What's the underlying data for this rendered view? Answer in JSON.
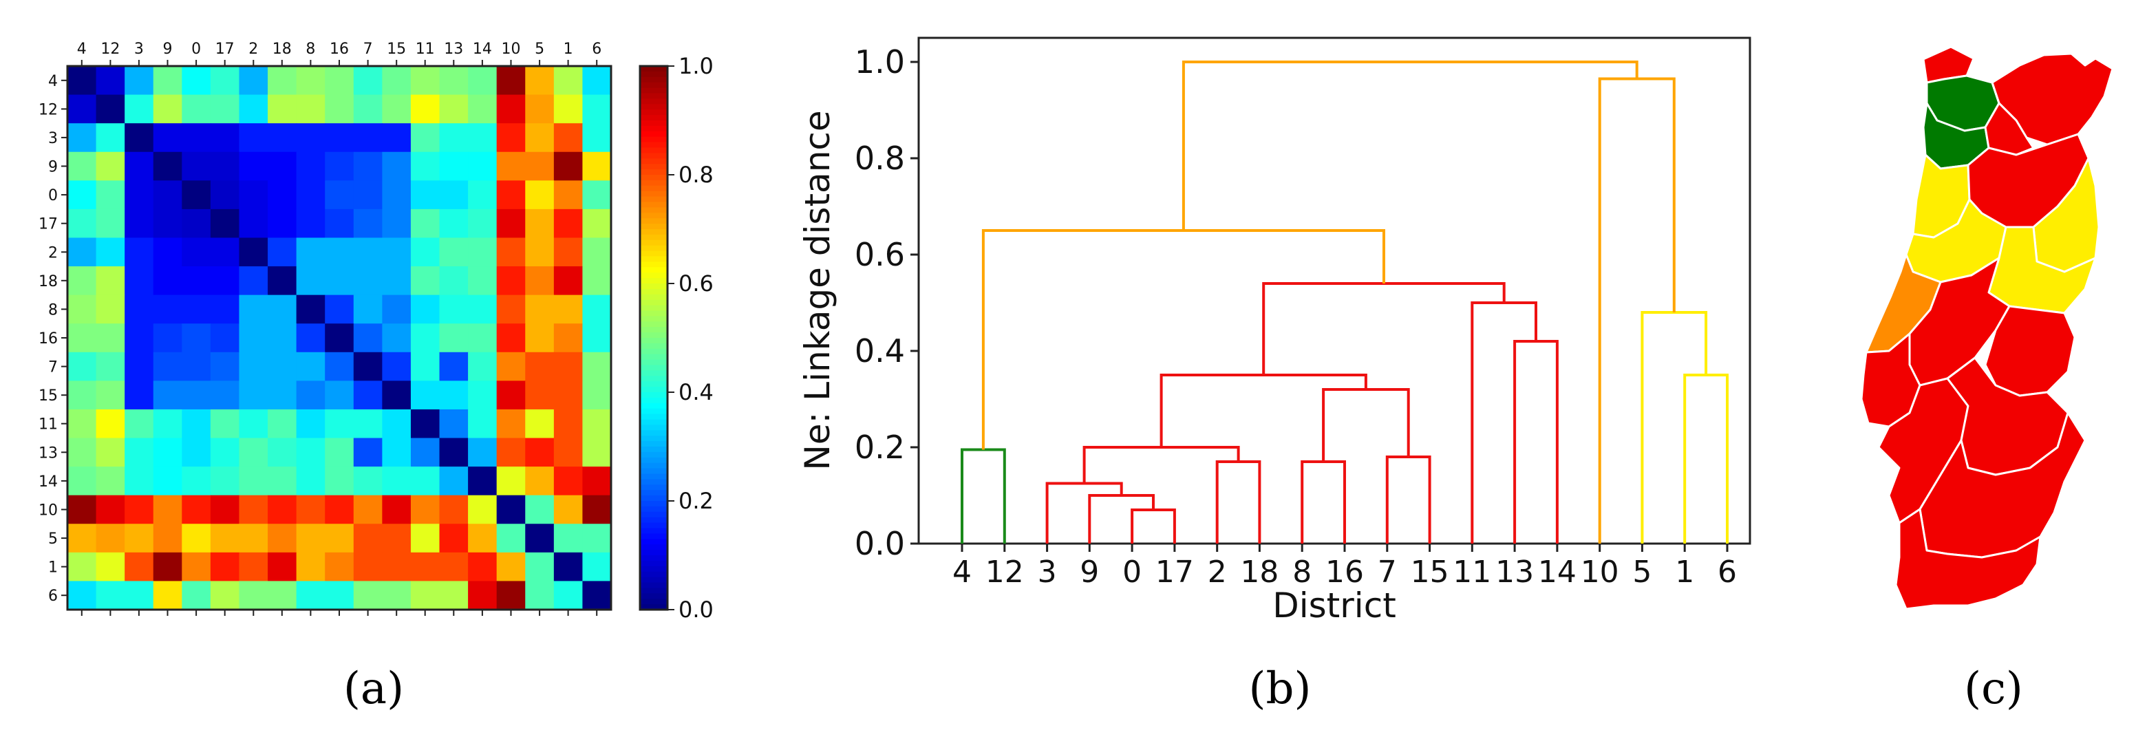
{
  "figure": {
    "panel_labels": [
      "(a)",
      "(b)",
      "(c)"
    ]
  },
  "chart_data": [
    {
      "type": "heatmap",
      "panel": "(a)",
      "labels": [
        "4",
        "12",
        "3",
        "9",
        "0",
        "17",
        "2",
        "18",
        "8",
        "16",
        "7",
        "15",
        "11",
        "13",
        "14",
        "10",
        "5",
        "1",
        "6"
      ],
      "colorbar": {
        "min": 0.0,
        "max": 1.0,
        "ticks": [
          "0.0",
          "0.2",
          "0.4",
          "0.6",
          "0.8",
          "1.0"
        ],
        "colormap": "jet"
      },
      "matrix": [
        [
          0.0,
          0.08,
          0.3,
          0.48,
          0.38,
          0.42,
          0.3,
          0.5,
          0.52,
          0.5,
          0.42,
          0.48,
          0.52,
          0.5,
          0.48,
          0.98,
          0.7,
          0.55,
          0.35
        ],
        [
          0.08,
          0.0,
          0.4,
          0.55,
          0.45,
          0.45,
          0.35,
          0.55,
          0.55,
          0.5,
          0.45,
          0.5,
          0.62,
          0.55,
          0.5,
          0.9,
          0.72,
          0.6,
          0.4
        ],
        [
          0.3,
          0.4,
          0.0,
          0.1,
          0.1,
          0.1,
          0.15,
          0.15,
          0.15,
          0.15,
          0.15,
          0.15,
          0.45,
          0.4,
          0.4,
          0.85,
          0.7,
          0.8,
          0.4
        ],
        [
          0.48,
          0.55,
          0.1,
          0.0,
          0.08,
          0.08,
          0.12,
          0.12,
          0.15,
          0.18,
          0.2,
          0.25,
          0.4,
          0.38,
          0.38,
          0.75,
          0.75,
          0.98,
          0.65
        ],
        [
          0.38,
          0.45,
          0.1,
          0.08,
          0.0,
          0.07,
          0.1,
          0.12,
          0.15,
          0.2,
          0.2,
          0.25,
          0.35,
          0.35,
          0.4,
          0.85,
          0.65,
          0.75,
          0.45
        ],
        [
          0.42,
          0.45,
          0.1,
          0.08,
          0.07,
          0.0,
          0.1,
          0.12,
          0.15,
          0.18,
          0.22,
          0.25,
          0.45,
          0.4,
          0.42,
          0.9,
          0.7,
          0.85,
          0.55
        ],
        [
          0.3,
          0.35,
          0.15,
          0.12,
          0.1,
          0.1,
          0.0,
          0.18,
          0.3,
          0.3,
          0.3,
          0.3,
          0.4,
          0.45,
          0.45,
          0.8,
          0.7,
          0.8,
          0.5
        ],
        [
          0.5,
          0.55,
          0.15,
          0.12,
          0.12,
          0.12,
          0.18,
          0.0,
          0.3,
          0.3,
          0.3,
          0.3,
          0.45,
          0.42,
          0.45,
          0.85,
          0.75,
          0.9,
          0.5
        ],
        [
          0.52,
          0.55,
          0.15,
          0.15,
          0.15,
          0.15,
          0.3,
          0.3,
          0.0,
          0.18,
          0.3,
          0.25,
          0.35,
          0.4,
          0.4,
          0.8,
          0.7,
          0.7,
          0.4
        ],
        [
          0.5,
          0.5,
          0.15,
          0.18,
          0.2,
          0.18,
          0.3,
          0.3,
          0.18,
          0.0,
          0.22,
          0.28,
          0.4,
          0.45,
          0.45,
          0.85,
          0.7,
          0.75,
          0.4
        ],
        [
          0.42,
          0.45,
          0.15,
          0.2,
          0.2,
          0.22,
          0.3,
          0.3,
          0.3,
          0.22,
          0.0,
          0.18,
          0.4,
          0.2,
          0.42,
          0.75,
          0.8,
          0.8,
          0.5
        ],
        [
          0.48,
          0.5,
          0.15,
          0.25,
          0.25,
          0.25,
          0.3,
          0.3,
          0.25,
          0.28,
          0.18,
          0.0,
          0.35,
          0.35,
          0.4,
          0.9,
          0.8,
          0.8,
          0.5
        ],
        [
          0.52,
          0.62,
          0.45,
          0.4,
          0.35,
          0.45,
          0.4,
          0.45,
          0.35,
          0.4,
          0.4,
          0.35,
          0.0,
          0.25,
          0.4,
          0.75,
          0.6,
          0.8,
          0.55
        ],
        [
          0.5,
          0.55,
          0.4,
          0.38,
          0.35,
          0.4,
          0.45,
          0.42,
          0.4,
          0.45,
          0.2,
          0.35,
          0.25,
          0.0,
          0.3,
          0.8,
          0.85,
          0.8,
          0.55
        ],
        [
          0.48,
          0.5,
          0.4,
          0.38,
          0.4,
          0.42,
          0.45,
          0.45,
          0.4,
          0.45,
          0.42,
          0.4,
          0.4,
          0.3,
          0.0,
          0.6,
          0.7,
          0.85,
          0.9
        ],
        [
          0.98,
          0.9,
          0.85,
          0.75,
          0.85,
          0.9,
          0.8,
          0.85,
          0.8,
          0.85,
          0.75,
          0.9,
          0.75,
          0.8,
          0.6,
          0.0,
          0.45,
          0.7,
          0.98
        ],
        [
          0.7,
          0.72,
          0.7,
          0.75,
          0.65,
          0.7,
          0.7,
          0.75,
          0.7,
          0.7,
          0.8,
          0.8,
          0.6,
          0.85,
          0.7,
          0.45,
          0.0,
          0.45,
          0.45
        ],
        [
          0.55,
          0.6,
          0.8,
          0.98,
          0.75,
          0.85,
          0.8,
          0.9,
          0.7,
          0.75,
          0.8,
          0.8,
          0.8,
          0.8,
          0.85,
          0.7,
          0.45,
          0.0,
          0.4
        ],
        [
          0.35,
          0.4,
          0.4,
          0.65,
          0.45,
          0.55,
          0.5,
          0.5,
          0.4,
          0.4,
          0.5,
          0.5,
          0.55,
          0.55,
          0.9,
          0.98,
          0.45,
          0.4,
          0.0
        ]
      ]
    },
    {
      "type": "dendrogram",
      "panel": "(b)",
      "xlabel": "District",
      "ylabel": "Ne: Linkage distance",
      "ylim": [
        0.0,
        1.05
      ],
      "yticks": [
        "0.0",
        "0.2",
        "0.4",
        "0.6",
        "0.8",
        "1.0"
      ],
      "leaves": [
        "4",
        "12",
        "3",
        "9",
        "0",
        "17",
        "2",
        "18",
        "8",
        "16",
        "7",
        "15",
        "11",
        "13",
        "14",
        "10",
        "5",
        "1",
        "6"
      ],
      "links": [
        {
          "a": 4,
          "b": 5,
          "height": 0.07,
          "color": "#ee1111"
        },
        {
          "a": 3,
          "b": 19,
          "height": 0.1,
          "color": "#ee1111"
        },
        {
          "a": 2,
          "b": 20,
          "height": 0.125,
          "color": "#ee1111"
        },
        {
          "a": 6,
          "b": 7,
          "height": 0.17,
          "color": "#ee1111"
        },
        {
          "a": 21,
          "b": 22,
          "height": 0.2,
          "color": "#ee1111"
        },
        {
          "a": 8,
          "b": 9,
          "height": 0.17,
          "color": "#ee1111"
        },
        {
          "a": 10,
          "b": 11,
          "height": 0.18,
          "color": "#ee1111"
        },
        {
          "a": 24,
          "b": 25,
          "height": 0.32,
          "color": "#ee1111"
        },
        {
          "a": 23,
          "b": 26,
          "height": 0.35,
          "color": "#ee1111"
        },
        {
          "a": 13,
          "b": 14,
          "height": 0.42,
          "color": "#ee1111"
        },
        {
          "a": 12,
          "b": 28,
          "height": 0.5,
          "color": "#ee1111"
        },
        {
          "a": 27,
          "b": 29,
          "height": 0.54,
          "color": "#ee1111"
        },
        {
          "a": 0,
          "b": 1,
          "height": 0.195,
          "color": "#1a8a1a"
        },
        {
          "a": 31,
          "b": 30,
          "height": 0.65,
          "color": "#ffa500"
        },
        {
          "a": 17,
          "b": 18,
          "height": 0.35,
          "color": "#ffee00"
        },
        {
          "a": 16,
          "b": 33,
          "height": 0.48,
          "color": "#ffee00"
        },
        {
          "a": 15,
          "b": 34,
          "height": 0.965,
          "color": "#ffa500"
        },
        {
          "a": 32,
          "b": 35,
          "height": 1.0,
          "color": "#ffa500"
        }
      ]
    }
  ],
  "map": {
    "panel": "(c)",
    "colors": {
      "red": "#f20000",
      "green": "#007a00",
      "yellow": "#ffee00",
      "orange": "#ff8c00",
      "border": "#ffffff"
    }
  }
}
